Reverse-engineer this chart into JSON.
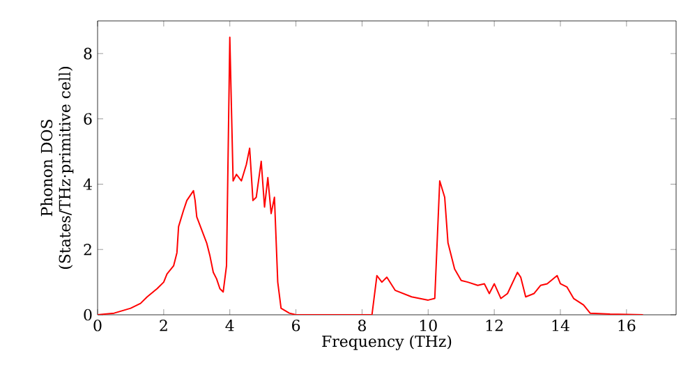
{
  "chart_data": {
    "type": "line",
    "xlabel": "Frequency (THz)",
    "ylabel": "Phonon DOS\n(States/THz·primitive cell)",
    "xlim": [
      0,
      17.5
    ],
    "ylim": [
      0,
      9
    ],
    "xticks": [
      0,
      2,
      4,
      6,
      8,
      10,
      12,
      14,
      16
    ],
    "yticks": [
      0,
      2,
      4,
      6,
      8
    ],
    "grid": false,
    "series": [
      {
        "color": "#ff0000",
        "x": [
          0,
          0.5,
          1.0,
          1.3,
          1.5,
          1.8,
          2.0,
          2.1,
          2.3,
          2.4,
          2.45,
          2.6,
          2.7,
          2.9,
          2.95,
          3.0,
          3.3,
          3.4,
          3.5,
          3.6,
          3.7,
          3.8,
          3.9,
          4.0,
          4.1,
          4.2,
          4.35,
          4.5,
          4.6,
          4.7,
          4.8,
          4.95,
          5.05,
          5.15,
          5.25,
          5.35,
          5.45,
          5.55,
          5.8,
          6.0,
          8.3,
          8.45,
          8.6,
          8.75,
          9.0,
          9.5,
          10.0,
          10.2,
          10.35,
          10.5,
          10.6,
          10.8,
          11.0,
          11.2,
          11.5,
          11.7,
          11.85,
          12.0,
          12.2,
          12.4,
          12.7,
          12.8,
          12.95,
          13.2,
          13.4,
          13.6,
          13.9,
          14.0,
          14.2,
          14.4,
          14.7,
          14.9,
          15.5,
          16.5
        ],
        "values": [
          0,
          0.05,
          0.2,
          0.35,
          0.55,
          0.8,
          1.0,
          1.25,
          1.5,
          1.9,
          2.7,
          3.2,
          3.5,
          3.8,
          3.5,
          3.0,
          2.2,
          1.8,
          1.3,
          1.1,
          0.8,
          0.7,
          1.5,
          8.5,
          4.1,
          4.3,
          4.1,
          4.6,
          5.1,
          3.5,
          3.6,
          4.7,
          3.3,
          4.2,
          3.1,
          3.6,
          1.0,
          0.2,
          0.05,
          0.0,
          0.0,
          1.2,
          1.0,
          1.15,
          0.75,
          0.55,
          0.45,
          0.5,
          4.1,
          3.6,
          2.2,
          1.4,
          1.05,
          1.0,
          0.9,
          0.95,
          0.65,
          0.95,
          0.5,
          0.65,
          1.3,
          1.15,
          0.55,
          0.65,
          0.9,
          0.95,
          1.2,
          0.95,
          0.85,
          0.5,
          0.3,
          0.05,
          0.02,
          0.0
        ]
      }
    ]
  }
}
